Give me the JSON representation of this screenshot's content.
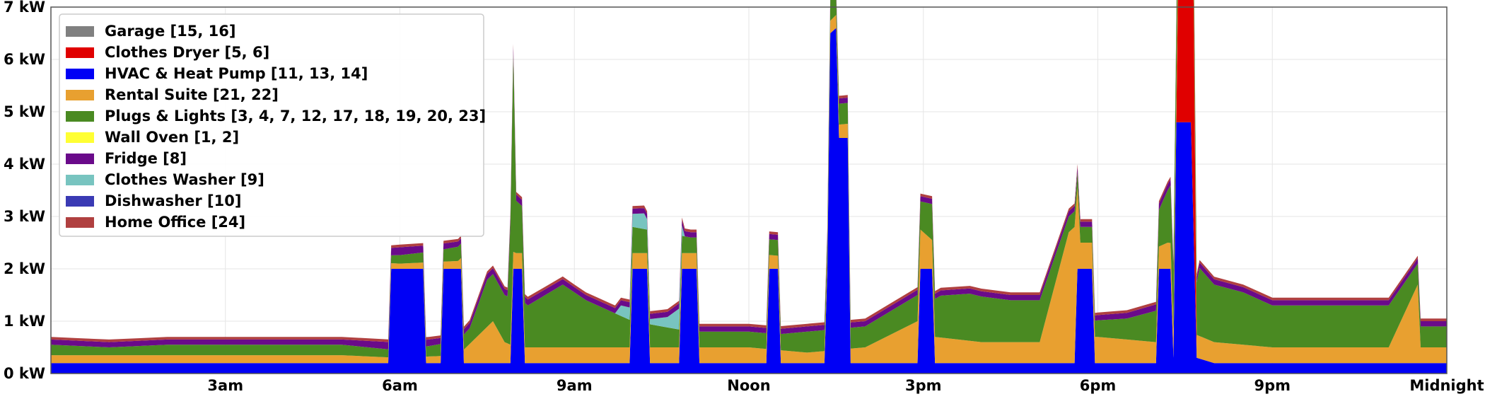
{
  "chart_data": {
    "type": "area",
    "stacked": true,
    "title": "",
    "xlabel": "",
    "ylabel": "",
    "ylim": [
      0,
      7
    ],
    "xlim": [
      0,
      24
    ],
    "grid": true,
    "legend_position": "top-left",
    "y_ticks": [
      {
        "value": 0,
        "label": "0 kW"
      },
      {
        "value": 1,
        "label": "1 kW"
      },
      {
        "value": 2,
        "label": "2 kW"
      },
      {
        "value": 3,
        "label": "3 kW"
      },
      {
        "value": 4,
        "label": "4 kW"
      },
      {
        "value": 5,
        "label": "5 kW"
      },
      {
        "value": 6,
        "label": "6 kW"
      },
      {
        "value": 7,
        "label": "7 kW"
      }
    ],
    "x_ticks": [
      {
        "value": 3,
        "label": "3am"
      },
      {
        "value": 6,
        "label": "6am"
      },
      {
        "value": 9,
        "label": "9am"
      },
      {
        "value": 12,
        "label": "Noon"
      },
      {
        "value": 15,
        "label": "3pm"
      },
      {
        "value": 18,
        "label": "6pm"
      },
      {
        "value": 21,
        "label": "9pm"
      },
      {
        "value": 24,
        "label": "Midnight"
      }
    ],
    "legend": [
      {
        "label": "Garage [15, 16]",
        "color": "#808080"
      },
      {
        "label": "Clothes Dryer [5, 6]",
        "color": "#e00000"
      },
      {
        "label": "HVAC & Heat Pump [11, 13, 14]",
        "color": "#0000f5"
      },
      {
        "label": "Rental Suite [21, 22]",
        "color": "#e8a030"
      },
      {
        "label": "Plugs & Lights [3, 4, 7, 12, 17, 18, 19, 20, 23]",
        "color": "#4a8a22"
      },
      {
        "label": "Wall Oven [1, 2]",
        "color": "#ffff33"
      },
      {
        "label": "Fridge [8]",
        "color": "#6a0a8a"
      },
      {
        "label": "Clothes Washer [9]",
        "color": "#78c4c0"
      },
      {
        "label": "Dishwasher [10]",
        "color": "#3a3ab4"
      },
      {
        "label": "Home Office [24]",
        "color": "#b04040"
      }
    ],
    "stack_order": [
      "HVAC & Heat Pump [11, 13, 14]",
      "Clothes Dryer [5, 6]",
      "Rental Suite [21, 22]",
      "Plugs & Lights [3, 4, 7, 12, 17, 18, 19, 20, 23]",
      "Clothes Washer [9]",
      "Fridge [8]",
      "Home Office [24]"
    ],
    "series": [
      {
        "name": "HVAC & Heat Pump [11, 13, 14]",
        "points": [
          [
            0,
            0.2
          ],
          [
            0.5,
            0.2
          ],
          [
            1,
            0.2
          ],
          [
            1.5,
            0.2
          ],
          [
            2,
            0.2
          ],
          [
            2.5,
            0.2
          ],
          [
            3,
            0.2
          ],
          [
            3.5,
            0.2
          ],
          [
            4,
            0.2
          ],
          [
            4.5,
            0.2
          ],
          [
            5,
            0.2
          ],
          [
            5.8,
            0.2
          ],
          [
            5.85,
            2.0
          ],
          [
            6.4,
            2.0
          ],
          [
            6.45,
            0.2
          ],
          [
            6.7,
            0.2
          ],
          [
            6.75,
            2.0
          ],
          [
            7.05,
            2.0
          ],
          [
            7.1,
            0.2
          ],
          [
            7.9,
            0.2
          ],
          [
            7.95,
            2.0
          ],
          [
            8.1,
            2.0
          ],
          [
            8.15,
            0.2
          ],
          [
            9.5,
            0.2
          ],
          [
            9.95,
            0.2
          ],
          [
            10.0,
            2.0
          ],
          [
            10.25,
            2.0
          ],
          [
            10.3,
            0.2
          ],
          [
            10.8,
            0.2
          ],
          [
            10.85,
            2.0
          ],
          [
            11.1,
            2.0
          ],
          [
            11.15,
            0.2
          ],
          [
            12.3,
            0.2
          ],
          [
            12.35,
            2.0
          ],
          [
            12.5,
            2.0
          ],
          [
            12.55,
            0.2
          ],
          [
            13.3,
            0.2
          ],
          [
            13.35,
            2.0
          ],
          [
            13.4,
            6.5
          ],
          [
            13.5,
            6.6
          ],
          [
            13.55,
            4.5
          ],
          [
            13.7,
            4.5
          ],
          [
            13.75,
            0.2
          ],
          [
            14.9,
            0.2
          ],
          [
            14.95,
            2.0
          ],
          [
            15.15,
            2.0
          ],
          [
            15.2,
            0.2
          ],
          [
            17,
            0.2
          ],
          [
            17.6,
            0.2
          ],
          [
            17.65,
            2.0
          ],
          [
            17.9,
            2.0
          ],
          [
            17.95,
            0.2
          ],
          [
            19.0,
            0.2
          ],
          [
            19.05,
            2.0
          ],
          [
            19.25,
            2.0
          ],
          [
            19.3,
            0.3
          ],
          [
            19.35,
            4.8
          ],
          [
            19.6,
            4.8
          ],
          [
            19.7,
            0.3
          ],
          [
            20,
            0.2
          ],
          [
            21,
            0.2
          ],
          [
            22,
            0.2
          ],
          [
            23,
            0.2
          ],
          [
            24,
            0.2
          ]
        ]
      },
      {
        "name": "Clothes Dryer [5, 6]",
        "points": [
          [
            0,
            0
          ],
          [
            13.35,
            0
          ],
          [
            13.4,
            0
          ],
          [
            13.55,
            0
          ],
          [
            13.6,
            0
          ],
          [
            19.35,
            0
          ],
          [
            19.4,
            4.4
          ],
          [
            19.65,
            4.4
          ],
          [
            19.7,
            0.0
          ],
          [
            19.8,
            0.0
          ],
          [
            24,
            0
          ]
        ]
      },
      {
        "name": "Rental Suite [21, 22]",
        "points": [
          [
            0,
            0.15
          ],
          [
            1,
            0.15
          ],
          [
            2,
            0.15
          ],
          [
            3,
            0.15
          ],
          [
            4,
            0.15
          ],
          [
            5,
            0.15
          ],
          [
            6,
            0.1
          ],
          [
            7,
            0.15
          ],
          [
            7.6,
            0.8
          ],
          [
            7.8,
            0.4
          ],
          [
            8,
            0.3
          ],
          [
            9,
            0.3
          ],
          [
            10,
            0.3
          ],
          [
            11,
            0.3
          ],
          [
            12,
            0.3
          ],
          [
            13,
            0.2
          ],
          [
            14,
            0.3
          ],
          [
            14.9,
            0.8
          ],
          [
            15.2,
            0.5
          ],
          [
            16,
            0.4
          ],
          [
            17,
            0.4
          ],
          [
            17.5,
            2.5
          ],
          [
            17.6,
            2.6
          ],
          [
            17.7,
            0.5
          ],
          [
            18,
            0.5
          ],
          [
            19,
            0.4
          ],
          [
            19.2,
            0.5
          ],
          [
            20,
            0.4
          ],
          [
            21,
            0.3
          ],
          [
            22,
            0.3
          ],
          [
            23,
            0.3
          ],
          [
            23.5,
            1.5
          ],
          [
            23.55,
            0.3
          ],
          [
            24,
            0.3
          ]
        ]
      },
      {
        "name": "Plugs & Lights [3, 4, 7, 12, 17, 18, 19, 20, 23]",
        "points": [
          [
            0,
            0.2
          ],
          [
            1,
            0.15
          ],
          [
            2,
            0.2
          ],
          [
            3,
            0.2
          ],
          [
            4,
            0.2
          ],
          [
            5,
            0.2
          ],
          [
            5.85,
            0.15
          ],
          [
            6.5,
            0.2
          ],
          [
            7.2,
            0.3
          ],
          [
            7.5,
            0.9
          ],
          [
            7.85,
            0.9
          ],
          [
            7.95,
            3.8
          ],
          [
            8.0,
            1.0
          ],
          [
            8.2,
            0.8
          ],
          [
            8.5,
            1.0
          ],
          [
            8.8,
            1.2
          ],
          [
            9.2,
            0.9
          ],
          [
            9.6,
            0.7
          ],
          [
            10,
            0.5
          ],
          [
            10.5,
            0.4
          ],
          [
            11,
            0.3
          ],
          [
            11.5,
            0.3
          ],
          [
            12,
            0.3
          ],
          [
            12.5,
            0.3
          ],
          [
            13,
            0.4
          ],
          [
            14,
            0.4
          ],
          [
            14.9,
            0.5
          ],
          [
            15.3,
            0.8
          ],
          [
            15.8,
            0.9
          ],
          [
            16.5,
            0.8
          ],
          [
            17,
            0.8
          ],
          [
            17.5,
            0.3
          ],
          [
            17.9,
            0.3
          ],
          [
            18.5,
            0.4
          ],
          [
            19,
            0.6
          ],
          [
            19.3,
            1.2
          ],
          [
            19.4,
            1.5
          ],
          [
            19.6,
            0.4
          ],
          [
            19.75,
            1.3
          ],
          [
            20,
            1.1
          ],
          [
            20.5,
            1.0
          ],
          [
            21,
            0.8
          ],
          [
            21.5,
            0.8
          ],
          [
            22,
            0.8
          ],
          [
            22.5,
            0.8
          ],
          [
            23,
            0.8
          ],
          [
            23.5,
            0.4
          ],
          [
            24,
            0.4
          ]
        ]
      },
      {
        "name": "Clothes Washer [9]",
        "points": [
          [
            0,
            0
          ],
          [
            9.7,
            0
          ],
          [
            9.8,
            0.2
          ],
          [
            10.2,
            0.3
          ],
          [
            10.3,
            0.1
          ],
          [
            10.6,
            0.2
          ],
          [
            10.8,
            0.4
          ],
          [
            10.9,
            0
          ],
          [
            24,
            0
          ]
        ]
      },
      {
        "name": "Fridge [8]",
        "points": [
          [
            0,
            0.1
          ],
          [
            1,
            0.1
          ],
          [
            2,
            0.1
          ],
          [
            3,
            0.1
          ],
          [
            4,
            0.1
          ],
          [
            5,
            0.1
          ],
          [
            6,
            0.15
          ],
          [
            7,
            0.1
          ],
          [
            8,
            0.12
          ],
          [
            9,
            0.1
          ],
          [
            10,
            0.1
          ],
          [
            11,
            0.1
          ],
          [
            12,
            0.1
          ],
          [
            13,
            0.1
          ],
          [
            14,
            0.1
          ],
          [
            15,
            0.1
          ],
          [
            16,
            0.1
          ],
          [
            17,
            0.1
          ],
          [
            18,
            0.1
          ],
          [
            19,
            0.12
          ],
          [
            20,
            0.1
          ],
          [
            21,
            0.1
          ],
          [
            22,
            0.1
          ],
          [
            23,
            0.1
          ],
          [
            24,
            0.1
          ]
        ]
      },
      {
        "name": "Home Office [24]",
        "points": [
          [
            0,
            0.05
          ],
          [
            6,
            0.05
          ],
          [
            12,
            0.05
          ],
          [
            18,
            0.05
          ],
          [
            24,
            0.05
          ]
        ]
      }
    ]
  }
}
